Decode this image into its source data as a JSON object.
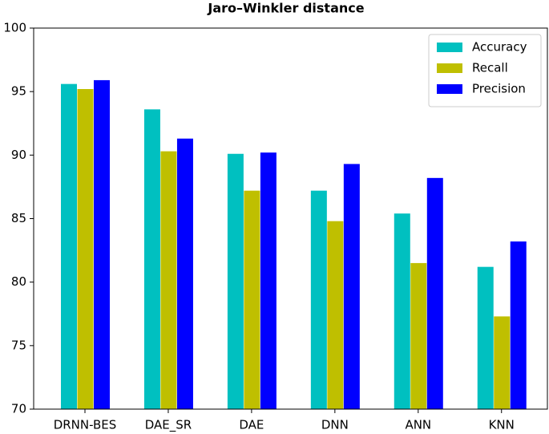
{
  "chart_data": {
    "type": "bar",
    "title": "Jaro–Winkler distance",
    "categories": [
      "DRNN-BES",
      "DAE_SR",
      "DAE",
      "DNN",
      "ANN",
      "KNN"
    ],
    "series": [
      {
        "name": "Accuracy",
        "color": "#00c0c0",
        "values": [
          95.6,
          93.6,
          90.1,
          87.2,
          85.4,
          81.2
        ]
      },
      {
        "name": "Recall",
        "color": "#bfbf00",
        "values": [
          95.2,
          90.3,
          87.2,
          84.8,
          81.5,
          77.3
        ]
      },
      {
        "name": "Precision",
        "color": "#0000ff",
        "values": [
          95.9,
          91.3,
          90.2,
          89.3,
          88.2,
          83.2
        ]
      }
    ],
    "ylim": [
      70,
      100
    ],
    "yticks": [
      70,
      75,
      80,
      85,
      90,
      95,
      100
    ],
    "grid": false,
    "legend": "upper right"
  }
}
